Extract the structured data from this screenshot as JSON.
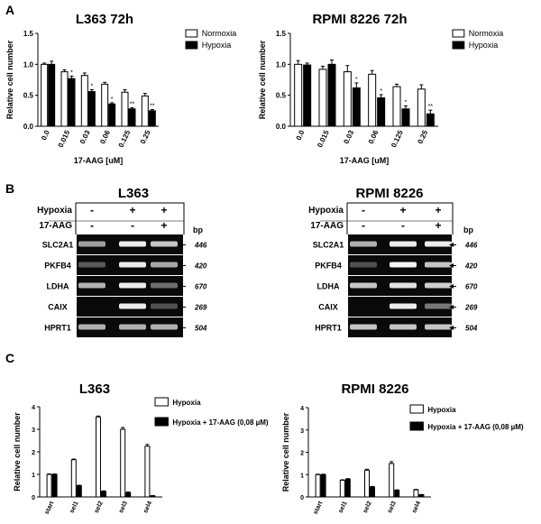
{
  "panels": {
    "a": "A",
    "b": "B",
    "c": "C"
  },
  "chart_data": [
    {
      "type": "bar",
      "title": "L363 72h",
      "ylabel": "Relative cell number",
      "xlabel": "17-AAG [uM]",
      "categories": [
        "0.0",
        "0.015",
        "0.03",
        "0.06",
        "0.125",
        "0.25"
      ],
      "ylim": [
        0,
        1.5
      ],
      "yticks": [
        "0.0",
        "0.5",
        "1.0",
        "1.5"
      ],
      "series": [
        {
          "name": "Normoxia",
          "color": "#ffffff",
          "values": [
            1.0,
            0.88,
            0.82,
            0.68,
            0.55,
            0.49
          ],
          "err": [
            0.02,
            0.03,
            0.04,
            0.03,
            0.04,
            0.04
          ]
        },
        {
          "name": "Hypoxia",
          "color": "#000000",
          "values": [
            1.0,
            0.77,
            0.56,
            0.36,
            0.28,
            0.25
          ],
          "err": [
            0.05,
            0.04,
            0.03,
            0.02,
            0.02,
            0.02
          ]
        }
      ],
      "annotations": [
        "",
        "*",
        "*",
        "*",
        "**",
        "**"
      ]
    },
    {
      "type": "bar",
      "title": "RPMI 8226 72h",
      "ylabel": "Relative cell number",
      "xlabel": "17-AAG [uM]",
      "categories": [
        "0.0",
        "0.015",
        "0.03",
        "0.06",
        "0.125",
        "0.25"
      ],
      "ylim": [
        0,
        1.5
      ],
      "yticks": [
        "0.0",
        "0.5",
        "1.0",
        "1.5"
      ],
      "series": [
        {
          "name": "Normoxia",
          "color": "#ffffff",
          "values": [
            1.0,
            0.92,
            0.88,
            0.84,
            0.64,
            0.6
          ],
          "err": [
            0.06,
            0.05,
            0.1,
            0.06,
            0.04,
            0.07
          ]
        },
        {
          "name": "Hypoxia",
          "color": "#000000",
          "values": [
            0.99,
            1.0,
            0.62,
            0.46,
            0.28,
            0.2
          ],
          "err": [
            0.03,
            0.07,
            0.08,
            0.05,
            0.05,
            0.06
          ]
        }
      ],
      "annotations": [
        "",
        "",
        "*",
        "*",
        "*",
        "**"
      ]
    },
    {
      "type": "bar",
      "title": "L363",
      "ylabel": "Relative cell number",
      "categories": [
        "start",
        "sel1",
        "sel2",
        "sel3",
        "sel4"
      ],
      "ylim": [
        0,
        4
      ],
      "yticks": [
        "0",
        "1",
        "2",
        "3",
        "4"
      ],
      "series": [
        {
          "name": "Hypoxia",
          "color": "#ffffff",
          "values": [
            1.0,
            1.65,
            3.55,
            3.0,
            2.25
          ],
          "err": [
            0.02,
            0.03,
            0.04,
            0.08,
            0.08
          ]
        },
        {
          "name": "Hypoxia + 17-AAG (0,08 µM)",
          "color": "#000000",
          "values": [
            1.0,
            0.5,
            0.25,
            0.2,
            0.05
          ],
          "err": [
            0.02,
            0.02,
            0.02,
            0.02,
            0.01
          ]
        }
      ]
    },
    {
      "type": "bar",
      "title": "RPMI 8226",
      "ylabel": "Relative cell number",
      "categories": [
        "start",
        "sel1",
        "sel2",
        "sel3",
        "sel4"
      ],
      "ylim": [
        0,
        4
      ],
      "yticks": [
        "0",
        "1",
        "2",
        "3",
        "4"
      ],
      "series": [
        {
          "name": "Hypoxia",
          "color": "#ffffff",
          "values": [
            1.0,
            0.75,
            1.2,
            1.5,
            0.32
          ],
          "err": [
            0.02,
            0.02,
            0.04,
            0.08,
            0.02
          ]
        },
        {
          "name": "Hypoxia + 17-AAG (0,08 µM)",
          "color": "#000000",
          "values": [
            1.0,
            0.8,
            0.45,
            0.3,
            0.1
          ],
          "err": [
            0.02,
            0.02,
            0.02,
            0.02,
            0.01
          ]
        }
      ]
    }
  ],
  "gels": [
    {
      "title": "L363",
      "conditions": [
        {
          "label": "Hypoxia",
          "values": [
            "-",
            "+",
            "+"
          ]
        },
        {
          "label": "17-AAG",
          "values": [
            "-",
            "-",
            "+"
          ]
        }
      ],
      "bp_label": "bp",
      "genes": [
        {
          "name": "SLC2A1",
          "bp": "446",
          "intensity": [
            0.5,
            0.9,
            0.7
          ]
        },
        {
          "name": "PKFB4",
          "bp": "420",
          "intensity": [
            0.15,
            0.9,
            0.55
          ]
        },
        {
          "name": "LDHA",
          "bp": "670",
          "intensity": [
            0.6,
            0.9,
            0.25
          ]
        },
        {
          "name": "CAIX",
          "bp": "269",
          "intensity": [
            0.0,
            0.9,
            0.1
          ]
        },
        {
          "name": "HPRT1",
          "bp": "504",
          "intensity": [
            0.6,
            0.6,
            0.6
          ]
        }
      ]
    },
    {
      "title": "RPMI 8226",
      "conditions": [
        {
          "label": "Hypoxia",
          "values": [
            "-",
            "+",
            "+"
          ]
        },
        {
          "label": "17-AAG",
          "values": [
            "-",
            "-",
            "+"
          ]
        }
      ],
      "bp_label": "bp",
      "genes": [
        {
          "name": "SLC2A1",
          "bp": "446",
          "intensity": [
            0.6,
            0.9,
            0.9
          ]
        },
        {
          "name": "PKFB4",
          "bp": "420",
          "intensity": [
            0.1,
            0.95,
            0.7
          ]
        },
        {
          "name": "LDHA",
          "bp": "670",
          "intensity": [
            0.7,
            0.85,
            0.75
          ]
        },
        {
          "name": "CAIX",
          "bp": "269",
          "intensity": [
            0.0,
            0.9,
            0.3
          ]
        },
        {
          "name": "HPRT1",
          "bp": "504",
          "intensity": [
            0.7,
            0.7,
            0.7
          ]
        }
      ]
    }
  ]
}
